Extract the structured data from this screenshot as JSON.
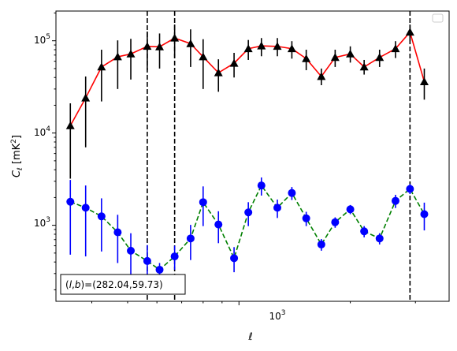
{
  "chart_data": {
    "type": "scatter",
    "title": "",
    "xlabel": "ℓ",
    "ylabel": "C_ℓ [mK²]",
    "xscale": "log",
    "yscale": "log",
    "xlim": [
      320,
      3700
    ],
    "ylim": [
      150,
      210000
    ],
    "grid": false,
    "legend": "top-right (empty)",
    "x_tick_labels": [
      {
        "value": 1000,
        "base": "10",
        "exp": "3"
      }
    ],
    "y_tick_labels": [
      {
        "value": 1000,
        "base": "10",
        "exp": "3"
      },
      {
        "value": 10000,
        "base": "10",
        "exp": "4"
      },
      {
        "value": 100000,
        "base": "10",
        "exp": "5"
      }
    ],
    "x": [
      350,
      385,
      425,
      470,
      510,
      565,
      610,
      670,
      740,
      800,
      880,
      970,
      1060,
      1150,
      1270,
      1390,
      1520,
      1670,
      1820,
      2000,
      2180,
      2400,
      2650,
      2900,
      3170,
      3480
    ],
    "series": [
      {
        "color": "#ff0000",
        "line": "solid",
        "errorbar_color": "#000000",
        "marker": "triangle",
        "marker_color": "#000000",
        "values": [
          12000,
          24000,
          52000,
          67000,
          72000,
          87000,
          86000,
          107000,
          93000,
          67000,
          45000,
          57000,
          82000,
          88000,
          87000,
          82000,
          64000,
          41000,
          66000,
          72000,
          52000,
          66000,
          82000,
          124000,
          36000
        ],
        "x_index": [
          0,
          1,
          2,
          3,
          4,
          5,
          6,
          7,
          8,
          9,
          10,
          11,
          12,
          13,
          14,
          15,
          16,
          17,
          18,
          19,
          20,
          21,
          22,
          23,
          24
        ],
        "err_low": [
          3200,
          7000,
          22000,
          30000,
          38000,
          48000,
          50000,
          65000,
          52000,
          30000,
          28000,
          40000,
          62000,
          68000,
          68000,
          64000,
          48000,
          33000,
          52000,
          58000,
          43000,
          52000,
          65000,
          100000,
          23000
        ],
        "err_high": [
          21000,
          41000,
          80000,
          101000,
          105000,
          126000,
          120000,
          150000,
          133000,
          104000,
          63000,
          74000,
          102000,
          107000,
          107000,
          99000,
          80000,
          50000,
          80000,
          87000,
          62000,
          80000,
          99000,
          150000,
          50000
        ]
      },
      {
        "color": "#008000",
        "line": "dashed",
        "errorbar_color": "#0000ff",
        "marker": "circle",
        "marker_color": "#0000ff",
        "values": [
          1800,
          1550,
          1250,
          840,
          530,
          410,
          330,
          460,
          720,
          1780,
          1020,
          440,
          1380,
          2700,
          1550,
          2240,
          1190,
          620,
          1080,
          1490,
          860,
          720,
          1840,
          2480,
          1320
        ],
        "x_index": [
          0,
          1,
          2,
          3,
          4,
          5,
          6,
          7,
          8,
          9,
          10,
          11,
          12,
          13,
          14,
          15,
          16,
          17,
          18,
          19,
          20,
          21,
          22,
          23,
          24
        ],
        "err_low": [
          480,
          460,
          520,
          390,
          230,
          210,
          270,
          330,
          420,
          980,
          640,
          310,
          980,
          2100,
          1200,
          1880,
          980,
          530,
          940,
          1320,
          740,
          620,
          1540,
          2180,
          880
        ],
        "err_high": [
          3100,
          2700,
          1960,
          1300,
          820,
          610,
          390,
          600,
          1010,
          2640,
          1420,
          580,
          1780,
          3300,
          1900,
          2600,
          1400,
          710,
          1220,
          1660,
          980,
          820,
          2140,
          2800,
          1760
        ]
      }
    ],
    "vlines": [
      565,
      670,
      2900
    ],
    "annotation": {
      "prefix": "(",
      "l": "l",
      "comma": ",",
      "b": "b",
      "suffix": ")=(282.04,59.73)"
    }
  }
}
